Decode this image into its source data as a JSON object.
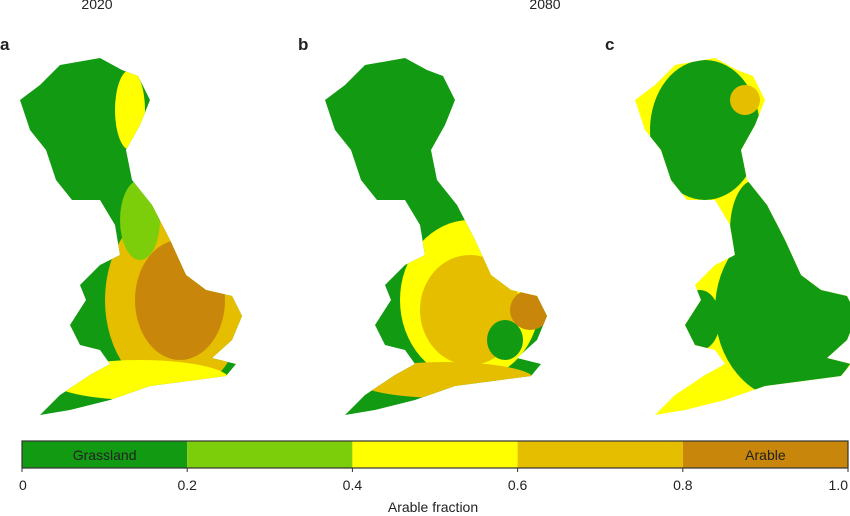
{
  "headers": [
    "2020",
    "2080"
  ],
  "panels": [
    "a",
    "b",
    "c"
  ],
  "colorbar": {
    "segments": [
      {
        "color": "#129b12",
        "label": "Grassland"
      },
      {
        "color": "#7ccd0a"
      },
      {
        "color": "#ffff00"
      },
      {
        "color": "#e6be00"
      },
      {
        "color": "#c8870a",
        "label": "Arable"
      }
    ],
    "ticks": [
      0,
      0.2,
      0.4,
      0.6,
      0.8,
      {
        "value": 1,
        "label": "1.0"
      }
    ],
    "title": "Arable fraction"
  }
}
